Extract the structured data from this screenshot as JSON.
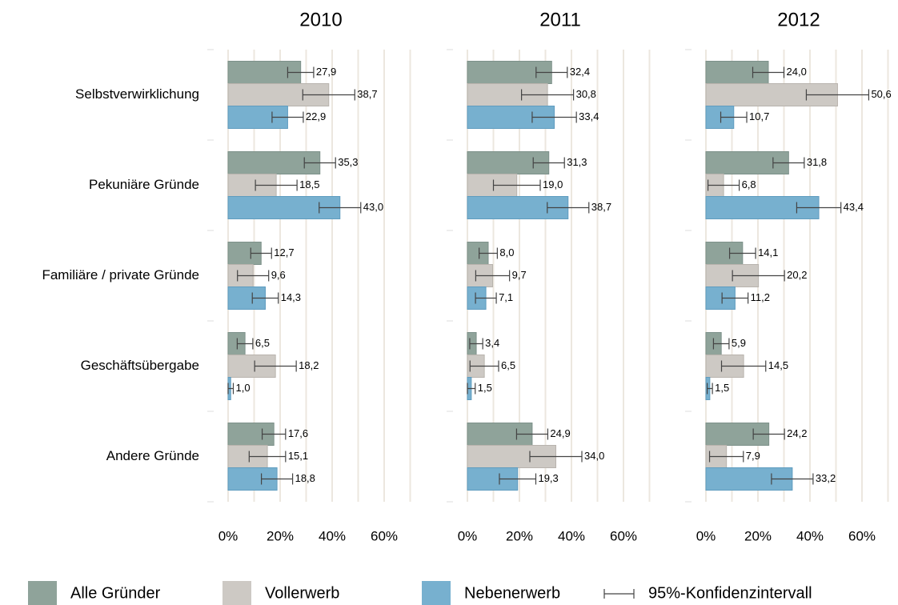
{
  "chart_data": [
    {
      "type": "bar",
      "title": "2010",
      "categories": [
        "Selbstverwirklichung",
        "Pekuniäre Gründe",
        "Familiäre / private Gründe",
        "Geschäftsübergabe",
        "Andere Gründe"
      ],
      "series": [
        {
          "name": "Alle Gründer",
          "color": "#8fa39a",
          "values": [
            27.9,
            35.3,
            12.7,
            6.5,
            17.6
          ],
          "value_labels": [
            "27,9",
            "35,3",
            "12,7",
            "6,5",
            "17,6"
          ],
          "errors": [
            5,
            6,
            4,
            3,
            4.5
          ]
        },
        {
          "name": "Vollerwerb",
          "color": "#cdc9c4",
          "values": [
            38.7,
            18.5,
            9.6,
            18.2,
            15.1
          ],
          "value_labels": [
            "38,7",
            "18,5",
            "9,6",
            "18,2",
            "15,1"
          ],
          "errors": [
            10,
            8,
            6,
            8,
            7
          ]
        },
        {
          "name": "Nebenerwerb",
          "color": "#77b0cf",
          "values": [
            22.9,
            43.0,
            14.3,
            1.0,
            18.8
          ],
          "value_labels": [
            "22,9",
            "43,0",
            "14,3",
            "1,0",
            "18,8"
          ],
          "errors": [
            6,
            8,
            5,
            1,
            6
          ]
        }
      ],
      "error_label": "95%-Konfidenzintervall",
      "xlim": [
        -8,
        72
      ],
      "xticks": [
        {
          "value": 0,
          "label": "0%"
        },
        {
          "value": 20,
          "label": "20%"
        },
        {
          "value": 40,
          "label": "40%"
        },
        {
          "value": 60,
          "label": "60%"
        }
      ],
      "minor_xticks": [
        10,
        30,
        50,
        70
      ],
      "grid": true,
      "legend": "bottom"
    },
    {
      "type": "bar",
      "title": "2011",
      "series": [
        {
          "values": [
            32.4,
            31.3,
            8.0,
            3.4,
            24.9
          ],
          "value_labels": [
            "32,4",
            "31,3",
            "8,0",
            "3,4",
            "24,9"
          ],
          "errors": [
            6,
            6,
            3.5,
            2.5,
            6
          ]
        },
        {
          "values": [
            30.8,
            19.0,
            9.7,
            6.5,
            34.0
          ],
          "value_labels": [
            "30,8",
            "19,0",
            "9,7",
            "6,5",
            "34,0"
          ],
          "errors": [
            10,
            9,
            6.5,
            5.5,
            10
          ]
        },
        {
          "values": [
            33.4,
            38.7,
            7.1,
            1.5,
            19.3
          ],
          "value_labels": [
            "33,4",
            "38,7",
            "7,1",
            "1,5",
            "19,3"
          ],
          "errors": [
            8.5,
            8,
            4,
            1.5,
            7
          ]
        }
      ],
      "xlim": [
        -8,
        72
      ],
      "xticks": [
        {
          "value": 0,
          "label": "0%"
        },
        {
          "value": 20,
          "label": "20%"
        },
        {
          "value": 40,
          "label": "40%"
        },
        {
          "value": 60,
          "label": "60%"
        }
      ],
      "minor_xticks": [
        10,
        30,
        50,
        70
      ],
      "grid": true
    },
    {
      "type": "bar",
      "title": "2012",
      "series": [
        {
          "values": [
            24.0,
            31.8,
            14.1,
            5.9,
            24.2
          ],
          "value_labels": [
            "24,0",
            "31,8",
            "14,1",
            "5,9",
            "24,2"
          ],
          "errors": [
            6,
            6,
            5,
            3,
            6
          ]
        },
        {
          "values": [
            50.6,
            6.8,
            20.2,
            14.5,
            7.9
          ],
          "value_labels": [
            "50,6",
            "6,8",
            "20,2",
            "14,5",
            "7,9"
          ],
          "errors": [
            12,
            6,
            10,
            8.5,
            6.5
          ]
        },
        {
          "values": [
            10.7,
            43.4,
            11.2,
            1.5,
            33.2
          ],
          "value_labels": [
            "10,7",
            "43,4",
            "11,2",
            "1,5",
            "33,2"
          ],
          "errors": [
            5,
            8.5,
            5,
            1,
            8
          ]
        }
      ],
      "xlim": [
        -8,
        72
      ],
      "xticks": [
        {
          "value": 0,
          "label": "0%"
        },
        {
          "value": 20,
          "label": "20%"
        },
        {
          "value": 40,
          "label": "40%"
        },
        {
          "value": 60,
          "label": "60%"
        }
      ],
      "minor_xticks": [
        10,
        30,
        50,
        70
      ],
      "grid": true
    }
  ]
}
